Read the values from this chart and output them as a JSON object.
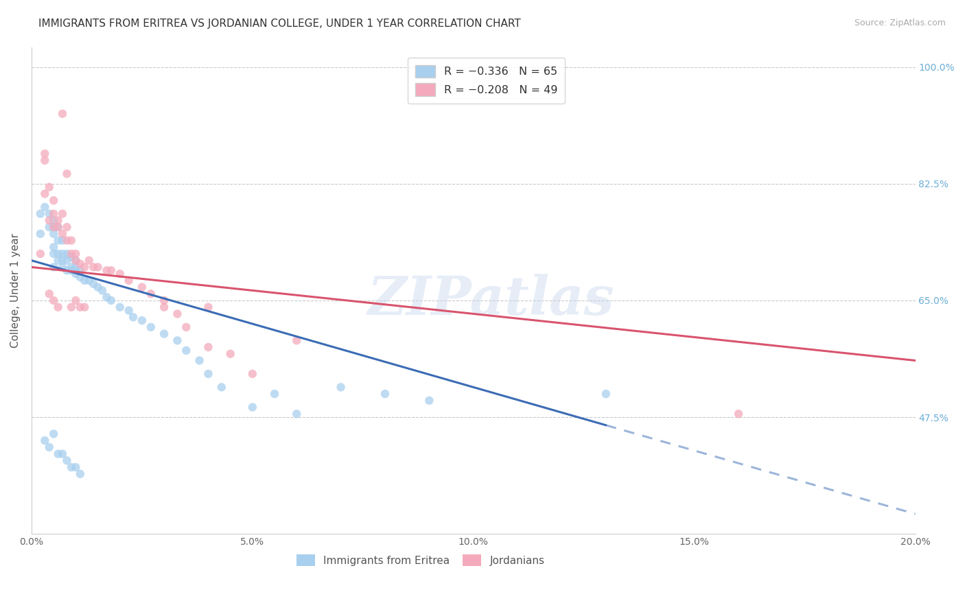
{
  "title": "IMMIGRANTS FROM ERITREA VS JORDANIAN COLLEGE, UNDER 1 YEAR CORRELATION CHART",
  "source": "Source: ZipAtlas.com",
  "ylabel": "College, Under 1 year",
  "xlim": [
    0.0,
    0.2
  ],
  "ylim": [
    0.3,
    1.03
  ],
  "yticks": [
    0.475,
    0.65,
    0.825,
    1.0
  ],
  "ytick_labels": [
    "47.5%",
    "65.0%",
    "82.5%",
    "100.0%"
  ],
  "xticks": [
    0.0,
    0.05,
    0.1,
    0.15,
    0.2
  ],
  "xtick_labels": [
    "0.0%",
    "5.0%",
    "10.0%",
    "15.0%",
    "20.0%"
  ],
  "legend_entries": [
    {
      "label": "R = −0.336   N = 65",
      "color": "#A8CFEE"
    },
    {
      "label": "R = −0.208   N = 49",
      "color": "#F4AABC"
    }
  ],
  "scatter_blue_x": [
    0.002,
    0.002,
    0.003,
    0.004,
    0.004,
    0.005,
    0.005,
    0.005,
    0.005,
    0.005,
    0.005,
    0.006,
    0.006,
    0.006,
    0.006,
    0.007,
    0.007,
    0.007,
    0.007,
    0.008,
    0.008,
    0.008,
    0.009,
    0.009,
    0.009,
    0.01,
    0.01,
    0.01,
    0.01,
    0.011,
    0.011,
    0.012,
    0.013,
    0.014,
    0.015,
    0.016,
    0.017,
    0.018,
    0.02,
    0.022,
    0.023,
    0.025,
    0.027,
    0.03,
    0.033,
    0.035,
    0.038,
    0.04,
    0.043,
    0.05,
    0.055,
    0.06,
    0.07,
    0.08,
    0.09,
    0.003,
    0.004,
    0.005,
    0.006,
    0.007,
    0.008,
    0.009,
    0.01,
    0.011,
    0.13
  ],
  "scatter_blue_y": [
    0.75,
    0.78,
    0.79,
    0.76,
    0.78,
    0.7,
    0.72,
    0.73,
    0.75,
    0.76,
    0.77,
    0.71,
    0.72,
    0.74,
    0.76,
    0.7,
    0.71,
    0.72,
    0.74,
    0.695,
    0.71,
    0.72,
    0.695,
    0.7,
    0.715,
    0.69,
    0.695,
    0.7,
    0.71,
    0.685,
    0.695,
    0.68,
    0.68,
    0.675,
    0.67,
    0.665,
    0.655,
    0.65,
    0.64,
    0.635,
    0.625,
    0.62,
    0.61,
    0.6,
    0.59,
    0.575,
    0.56,
    0.54,
    0.52,
    0.49,
    0.51,
    0.48,
    0.52,
    0.51,
    0.5,
    0.44,
    0.43,
    0.45,
    0.42,
    0.42,
    0.41,
    0.4,
    0.4,
    0.39,
    0.51
  ],
  "scatter_pink_x": [
    0.002,
    0.003,
    0.003,
    0.003,
    0.004,
    0.004,
    0.005,
    0.005,
    0.005,
    0.006,
    0.006,
    0.007,
    0.007,
    0.008,
    0.008,
    0.009,
    0.009,
    0.01,
    0.01,
    0.011,
    0.012,
    0.013,
    0.014,
    0.015,
    0.017,
    0.018,
    0.02,
    0.022,
    0.025,
    0.027,
    0.03,
    0.033,
    0.035,
    0.04,
    0.045,
    0.05,
    0.06,
    0.004,
    0.005,
    0.006,
    0.007,
    0.008,
    0.009,
    0.01,
    0.011,
    0.012,
    0.16,
    0.03,
    0.04
  ],
  "scatter_pink_y": [
    0.72,
    0.87,
    0.81,
    0.86,
    0.77,
    0.82,
    0.76,
    0.78,
    0.8,
    0.77,
    0.76,
    0.75,
    0.78,
    0.74,
    0.76,
    0.72,
    0.74,
    0.71,
    0.72,
    0.705,
    0.7,
    0.71,
    0.7,
    0.7,
    0.695,
    0.695,
    0.69,
    0.68,
    0.67,
    0.66,
    0.65,
    0.63,
    0.61,
    0.58,
    0.57,
    0.54,
    0.59,
    0.66,
    0.65,
    0.64,
    0.93,
    0.84,
    0.64,
    0.65,
    0.64,
    0.64,
    0.48,
    0.64,
    0.64
  ],
  "trend_blue_x0": 0.0,
  "trend_blue_y0": 0.71,
  "trend_blue_x1": 0.2,
  "trend_blue_y1": 0.33,
  "trend_blue_solid_end": 0.13,
  "trend_pink_x0": 0.0,
  "trend_pink_y0": 0.7,
  "trend_pink_x1": 0.2,
  "trend_pink_y1": 0.56,
  "trend_blue_color": "#3B6CB5",
  "trend_pink_color": "#D9546E",
  "trend_linewidth": 2.2,
  "scatter_blue_color": "#A8CFEE",
  "scatter_pink_color": "#F4AABC",
  "scatter_size": 80,
  "scatter_alpha": 0.75,
  "watermark": "ZIPatlas",
  "background_color": "#FFFFFF",
  "grid_color": "#BBBBBB",
  "title_fontsize": 11,
  "axis_label_fontsize": 11,
  "tick_fontsize": 10,
  "right_axis_color": "#6BAED6"
}
